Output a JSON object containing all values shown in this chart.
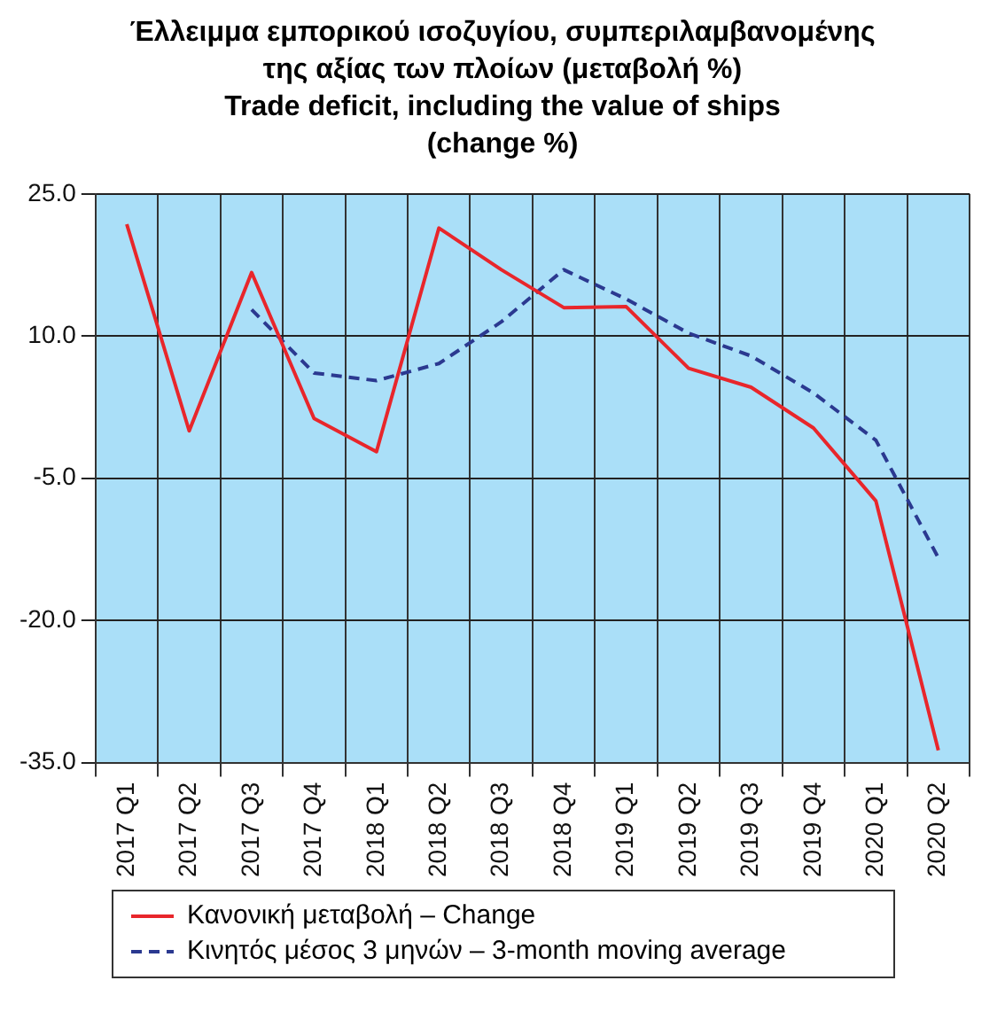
{
  "chart_data": {
    "type": "line",
    "title": "Έλλειμμα εμπορικού ισοζυγίου, συμπεριλαμβανομένης της αξίας των πλοίων (μεταβολή %)",
    "subtitle": "Trade deficit, including the value of ships (change %)",
    "categories": [
      "2017 Q1",
      "2017 Q2",
      "2017 Q3",
      "2017 Q4",
      "2018 Q1",
      "2018 Q2",
      "2018 Q3",
      "2018 Q4",
      "2019 Q1",
      "2019 Q2",
      "2019 Q3",
      "2019 Q4",
      "2020 Q1",
      "2020 Q2"
    ],
    "series": [
      {
        "name": "Κανονική μεταβολή – Change",
        "color": "#e8262b",
        "line_style": "solid",
        "values": [
          21.8,
          0,
          16.7,
          1.3,
          -2.2,
          21.4,
          17,
          13,
          13.1,
          6.6,
          4.6,
          0.3,
          -7.4,
          -33.7
        ]
      },
      {
        "name": "Κινητός μέσος 3 μηνών – 3-month moving average",
        "color": "#2b3990",
        "line_style": "dashed",
        "values": [
          null,
          null,
          12.8,
          6.1,
          5.3,
          7.1,
          11.5,
          17,
          13.9,
          10.3,
          7.9,
          4,
          -1,
          -13.4
        ]
      }
    ],
    "ylim": [
      -35,
      25
    ],
    "yticks": [
      {
        "value": 25,
        "label": "25.0"
      },
      {
        "value": 10,
        "label": "10.0"
      },
      {
        "value": -5,
        "label": "-5.0"
      },
      {
        "value": -20,
        "label": "-20.0"
      },
      {
        "value": -35,
        "label": "-35.0"
      }
    ],
    "grid": true,
    "legend": "bottom",
    "marker": "none"
  }
}
